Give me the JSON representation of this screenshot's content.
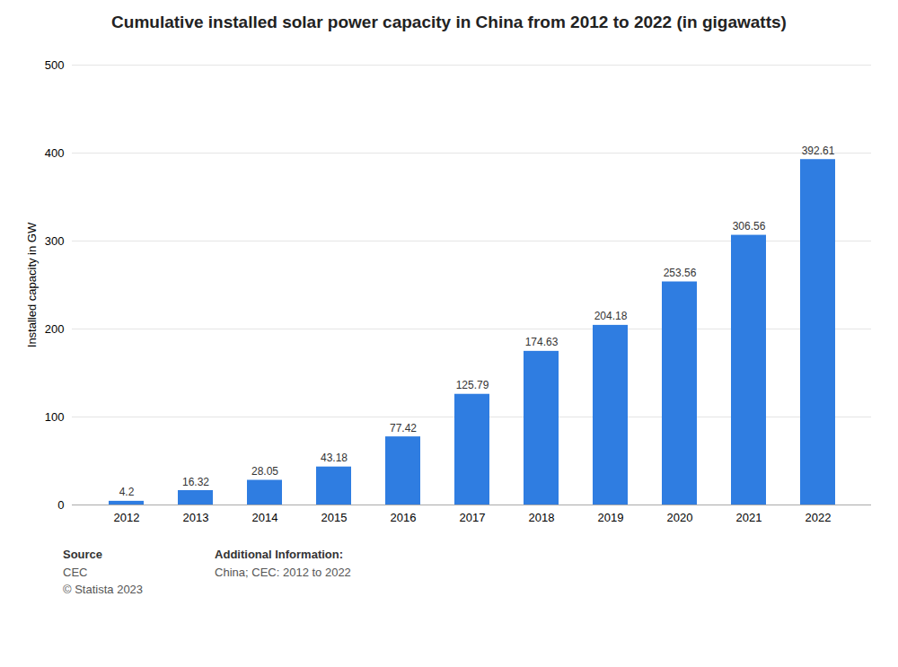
{
  "chart_data": {
    "type": "bar",
    "title": "Cumulative installed solar power capacity in China from 2012 to 2022 (in gigawatts)",
    "categories": [
      "2012",
      "2013",
      "2014",
      "2015",
      "2016",
      "2017",
      "2018",
      "2019",
      "2020",
      "2021",
      "2022"
    ],
    "values": [
      4.2,
      16.32,
      28.05,
      43.18,
      77.42,
      125.79,
      174.63,
      204.18,
      253.56,
      306.56,
      392.61
    ],
    "color": "#2f7de1",
    "ylabel": "Installed capacity in GW",
    "ylim": [
      0,
      500
    ],
    "yticks": [
      0,
      100,
      200,
      300,
      400,
      500
    ],
    "grid": true,
    "data_labels": true,
    "annotations": [
      [
        "Source",
        "CEC",
        "© Statista 2023"
      ],
      [
        "Additional Information:",
        "China; CEC: 2012 to 2022"
      ]
    ]
  }
}
